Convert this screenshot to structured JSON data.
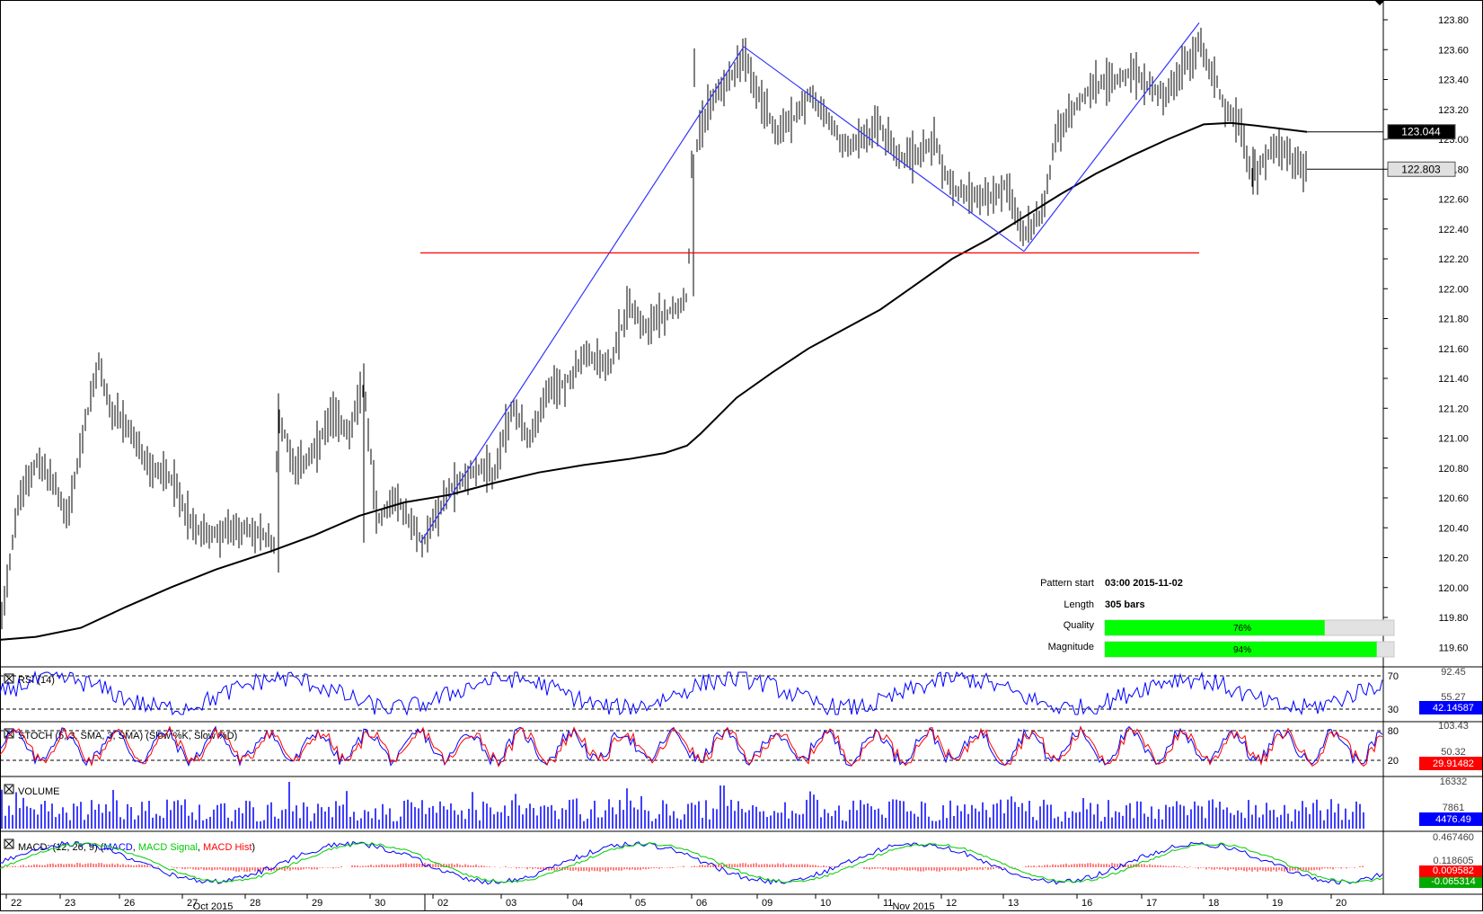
{
  "chart_data": {
    "type": "ohlc",
    "instrument_scale": "price",
    "y_ticks": [
      "123.80",
      "123.60",
      "123.40",
      "123.20",
      "123.00",
      "122.80",
      "122.60",
      "122.40",
      "122.20",
      "122.00",
      "121.80",
      "121.60",
      "121.40",
      "121.20",
      "121.00",
      "120.80",
      "120.60",
      "120.40",
      "120.20",
      "120.00",
      "119.80",
      "119.60"
    ],
    "ylim": [
      119.55,
      123.9
    ],
    "x_day_labels": [
      "22",
      "23",
      "26",
      "27",
      "28",
      "29",
      "30",
      "02",
      "03",
      "04",
      "05",
      "06",
      "09",
      "10",
      "11",
      "12",
      "13",
      "16",
      "17",
      "18",
      "19",
      "20"
    ],
    "x_month_labels": [
      "Oct 2015",
      "Nov 2015"
    ],
    "price_path": [
      [
        0,
        119.75
      ],
      [
        20,
        120.55
      ],
      [
        40,
        120.85
      ],
      [
        60,
        120.7
      ],
      [
        75,
        120.45
      ],
      [
        95,
        121.1
      ],
      [
        110,
        121.5
      ],
      [
        125,
        121.15
      ],
      [
        145,
        121.05
      ],
      [
        165,
        120.8
      ],
      [
        190,
        120.75
      ],
      [
        215,
        120.4
      ],
      [
        240,
        120.35
      ],
      [
        265,
        120.4
      ],
      [
        290,
        120.35
      ],
      [
        305,
        120.3
      ],
      [
        310,
        121.15
      ],
      [
        330,
        120.8
      ],
      [
        350,
        120.9
      ],
      [
        370,
        121.15
      ],
      [
        390,
        121.05
      ],
      [
        405,
        121.35
      ],
      [
        420,
        120.45
      ],
      [
        440,
        120.6
      ],
      [
        470,
        120.3
      ],
      [
        500,
        120.65
      ],
      [
        530,
        120.8
      ],
      [
        550,
        120.75
      ],
      [
        570,
        121.2
      ],
      [
        590,
        121.0
      ],
      [
        610,
        121.3
      ],
      [
        635,
        121.4
      ],
      [
        650,
        121.55
      ],
      [
        680,
        121.5
      ],
      [
        700,
        121.9
      ],
      [
        720,
        121.75
      ],
      [
        745,
        121.85
      ],
      [
        765,
        121.95
      ],
      [
        772,
        122.9
      ],
      [
        790,
        123.25
      ],
      [
        810,
        123.4
      ],
      [
        828,
        123.55
      ],
      [
        845,
        123.3
      ],
      [
        865,
        123.05
      ],
      [
        885,
        123.15
      ],
      [
        900,
        123.3
      ],
      [
        920,
        123.15
      ],
      [
        940,
        122.95
      ],
      [
        960,
        123.0
      ],
      [
        980,
        123.1
      ],
      [
        1000,
        122.85
      ],
      [
        1020,
        122.9
      ],
      [
        1040,
        123.0
      ],
      [
        1060,
        122.65
      ],
      [
        1080,
        122.65
      ],
      [
        1100,
        122.6
      ],
      [
        1120,
        122.7
      ],
      [
        1140,
        122.35
      ],
      [
        1160,
        122.5
      ],
      [
        1175,
        123.0
      ],
      [
        1195,
        123.2
      ],
      [
        1215,
        123.35
      ],
      [
        1240,
        123.4
      ],
      [
        1260,
        123.45
      ],
      [
        1280,
        123.35
      ],
      [
        1300,
        123.3
      ],
      [
        1320,
        123.5
      ],
      [
        1335,
        123.65
      ],
      [
        1350,
        123.45
      ],
      [
        1365,
        123.2
      ],
      [
        1380,
        123.1
      ],
      [
        1395,
        122.75
      ],
      [
        1410,
        122.9
      ],
      [
        1425,
        122.95
      ],
      [
        1440,
        122.85
      ],
      [
        1455,
        122.8
      ]
    ],
    "ma_path": [
      [
        0,
        119.65
      ],
      [
        40,
        119.67
      ],
      [
        90,
        119.73
      ],
      [
        140,
        119.87
      ],
      [
        190,
        120.0
      ],
      [
        240,
        120.12
      ],
      [
        300,
        120.24
      ],
      [
        350,
        120.35
      ],
      [
        400,
        120.48
      ],
      [
        450,
        120.57
      ],
      [
        500,
        120.62
      ],
      [
        550,
        120.7
      ],
      [
        600,
        120.77
      ],
      [
        650,
        120.82
      ],
      [
        700,
        120.86
      ],
      [
        740,
        120.9
      ],
      [
        765,
        120.95
      ],
      [
        780,
        121.03
      ],
      [
        820,
        121.27
      ],
      [
        860,
        121.44
      ],
      [
        900,
        121.6
      ],
      [
        940,
        121.73
      ],
      [
        980,
        121.86
      ],
      [
        1020,
        122.03
      ],
      [
        1060,
        122.2
      ],
      [
        1100,
        122.33
      ],
      [
        1140,
        122.48
      ],
      [
        1180,
        122.63
      ],
      [
        1220,
        122.77
      ],
      [
        1260,
        122.89
      ],
      [
        1300,
        123.0
      ],
      [
        1340,
        123.1
      ],
      [
        1370,
        123.11
      ],
      [
        1400,
        123.09
      ],
      [
        1455,
        123.05
      ]
    ],
    "pattern_lines": [
      [
        [
          468,
          120.3
        ],
        [
          828,
          123.62
        ]
      ],
      [
        [
          828,
          123.62
        ],
        [
          1140,
          122.25
        ]
      ],
      [
        [
          1140,
          122.25
        ],
        [
          1335,
          123.78
        ]
      ]
    ],
    "support_line": {
      "x_start": 468,
      "x_end": 1335,
      "value": 122.24
    },
    "last_price": "122.803",
    "ma_value": "123.044",
    "pattern_info": {
      "pattern_start_label": "Pattern start",
      "pattern_start_value": "03:00 2015-11-02",
      "length_label": "Length",
      "length_value": "305 bars",
      "quality_label": "Quality",
      "quality_value": "76%",
      "quality_fraction": 0.76,
      "magnitude_label": "Magnitude",
      "magnitude_value": "94%",
      "magnitude_fraction": 0.94
    },
    "panels": {
      "rsi": {
        "title": "RSI (14)",
        "levels": [
          "70",
          "30"
        ],
        "scale": [
          "92.45",
          "55.27"
        ],
        "value": "42.14587"
      },
      "stoch": {
        "title": "STOCH (5, 3, SMA, 3, SMA) (Slow %K, Slow %D)",
        "levels": [
          "80",
          "20"
        ],
        "scale": [
          "103.43",
          "50.32"
        ],
        "value": "29.91482"
      },
      "volume": {
        "title": "VOLUME",
        "scale": [
          "16332",
          "7861"
        ],
        "value": "4476.49"
      },
      "macd": {
        "title_prefix": "MACD: (12, 26, 9) (",
        "title_macd": "MACD",
        "title_signal": "MACD Signal",
        "title_hist": "MACD Hist",
        "title_suffix": ")",
        "scale": [
          "0.467460",
          "0.118605"
        ],
        "value_signal": "0.009582",
        "value_hist": "-0.065314"
      }
    },
    "colors": {
      "price": "#000000",
      "ma": "#000000",
      "pattern": "#3333ff",
      "support": "#ff0000",
      "quality_bar": "#00ff00",
      "rsi": "#0000ff",
      "stoch_k": "#0000ff",
      "stoch_d": "#ff0000",
      "volume": "#0000ff",
      "macd": "#0000ff",
      "macd_signal": "#00cc00",
      "macd_hist": "#ff0000",
      "value_box_blue": "#0000ff",
      "value_box_red": "#ff0000"
    }
  }
}
